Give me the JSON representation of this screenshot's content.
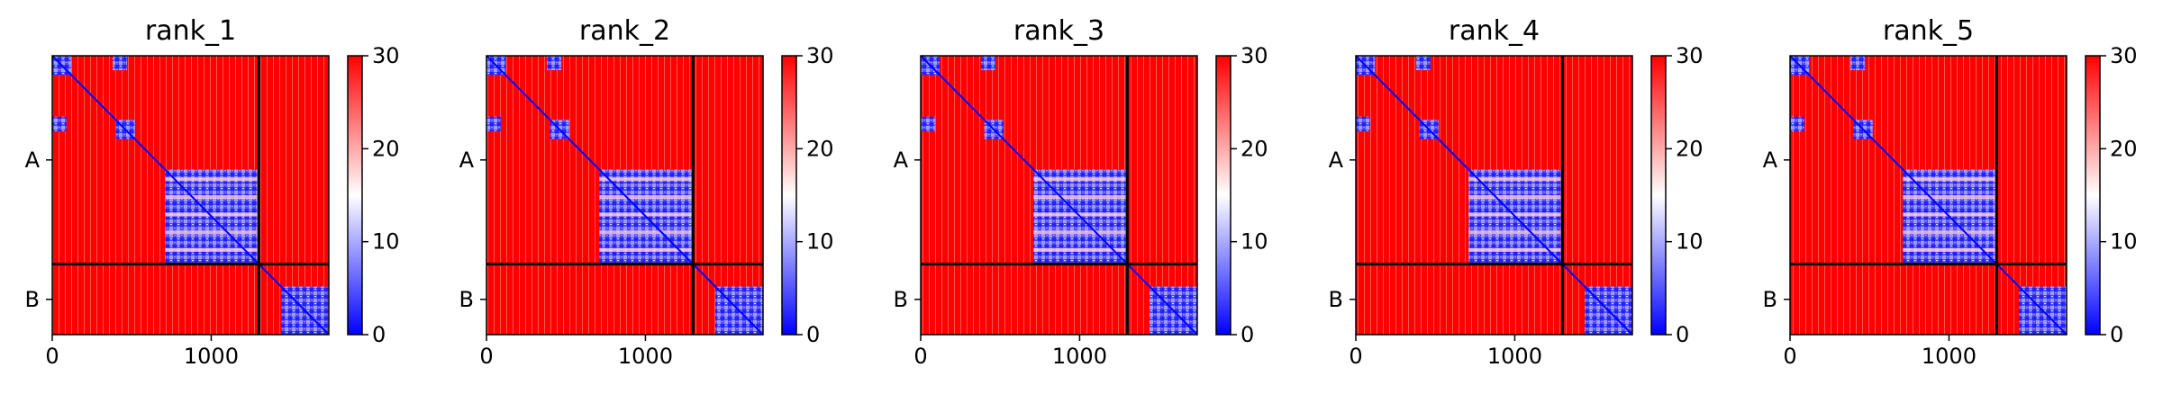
{
  "chart_data": [
    {
      "type": "heatmap",
      "title": "rank_1",
      "chains": [
        "A",
        "B"
      ],
      "chain_boundary": 1300,
      "xlim": [
        0,
        1740
      ],
      "xticks": [
        0,
        1000
      ],
      "colorbar": {
        "min": 0,
        "max": 30,
        "ticks": [
          0,
          10,
          20,
          30
        ],
        "colormap": "bwr"
      }
    },
    {
      "type": "heatmap",
      "title": "rank_2",
      "chains": [
        "A",
        "B"
      ],
      "chain_boundary": 1300,
      "xlim": [
        0,
        1740
      ],
      "xticks": [
        0,
        1000
      ],
      "colorbar": {
        "min": 0,
        "max": 30,
        "ticks": [
          0,
          10,
          20,
          30
        ],
        "colormap": "bwr"
      }
    },
    {
      "type": "heatmap",
      "title": "rank_3",
      "chains": [
        "A",
        "B"
      ],
      "chain_boundary": 1300,
      "xlim": [
        0,
        1740
      ],
      "xticks": [
        0,
        1000
      ],
      "colorbar": {
        "min": 0,
        "max": 30,
        "ticks": [
          0,
          10,
          20,
          30
        ],
        "colormap": "bwr"
      }
    },
    {
      "type": "heatmap",
      "title": "rank_4",
      "chains": [
        "A",
        "B"
      ],
      "chain_boundary": 1300,
      "xlim": [
        0,
        1740
      ],
      "xticks": [
        0,
        1000
      ],
      "colorbar": {
        "min": 0,
        "max": 30,
        "ticks": [
          0,
          10,
          20,
          30
        ],
        "colormap": "bwr"
      }
    },
    {
      "type": "heatmap",
      "title": "rank_5",
      "chains": [
        "A",
        "B"
      ],
      "chain_boundary": 1300,
      "xlim": [
        0,
        1740
      ],
      "xticks": [
        0,
        1000
      ],
      "colorbar": {
        "min": 0,
        "max": 30,
        "ticks": [
          0,
          10,
          20,
          30
        ],
        "colormap": "bwr"
      }
    }
  ]
}
